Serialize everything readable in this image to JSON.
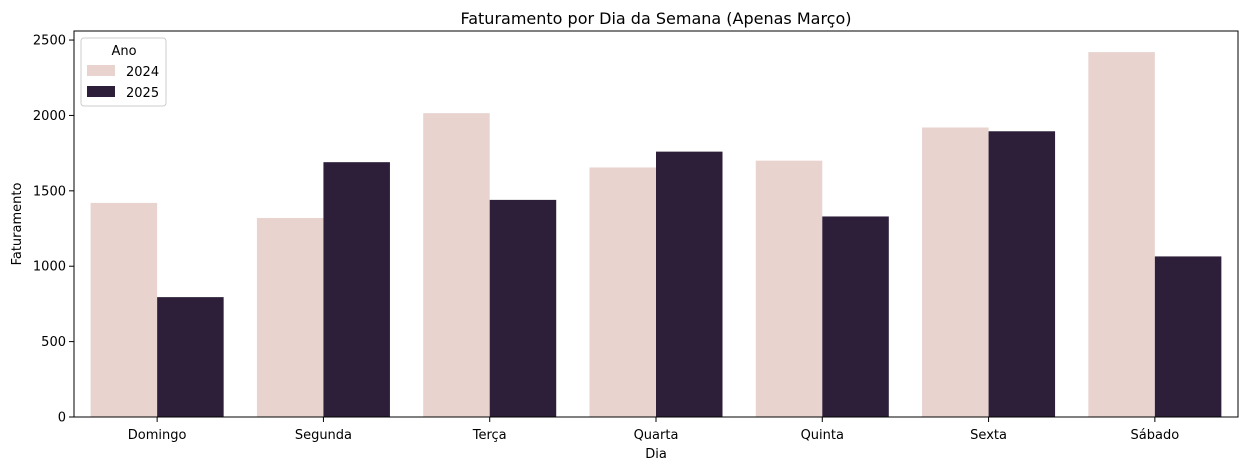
{
  "chart_data": {
    "type": "bar",
    "title": "Faturamento por Dia da Semana (Apenas Março)",
    "xlabel": "Dia",
    "ylabel": "Faturamento",
    "categories": [
      "Domingo",
      "Segunda",
      "Terça",
      "Quarta",
      "Quinta",
      "Sexta",
      "Sábado"
    ],
    "series": [
      {
        "name": "2024",
        "color": "#e8d3cf",
        "values": [
          1420,
          1320,
          2015,
          1655,
          1700,
          1920,
          2420
        ]
      },
      {
        "name": "2025",
        "color": "#2d1f39",
        "values": [
          795,
          1690,
          1440,
          1760,
          1330,
          1895,
          1065
        ]
      }
    ],
    "ylim": [
      0,
      2560
    ],
    "yticks": [
      0,
      500,
      1000,
      1500,
      2000,
      2500
    ],
    "grid": false,
    "legend": {
      "title": "Ano",
      "placement": "top-left"
    }
  }
}
